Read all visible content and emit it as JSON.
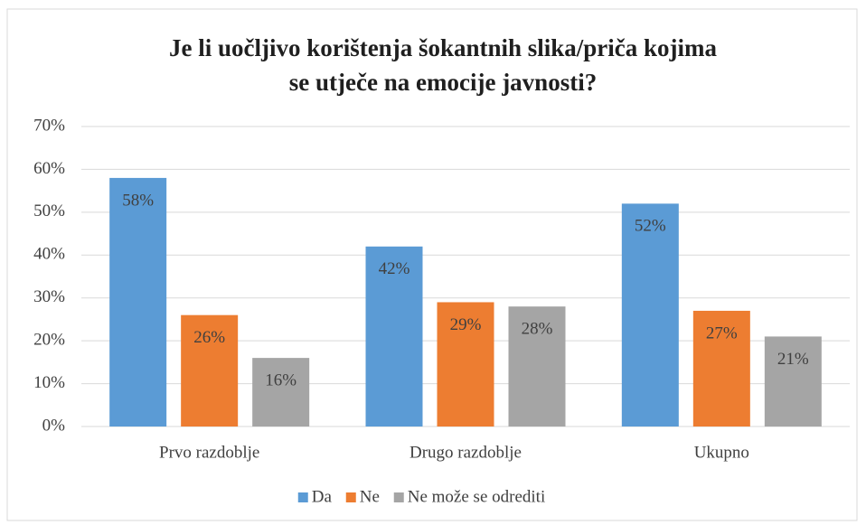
{
  "chart_data": {
    "type": "bar",
    "title": [
      "Je li uočljivo korištenja šokantnih slika/priča kojima",
      "se utječe na emocije javnosti?"
    ],
    "categories": [
      "Prvo razdoblje",
      "Drugo razdoblje",
      "Ukupno"
    ],
    "series": [
      {
        "name": "Da",
        "color": "#5b9bd5",
        "values": [
          58,
          42,
          52
        ],
        "value_labels": [
          "58%",
          "42%",
          "52%"
        ]
      },
      {
        "name": "Ne",
        "color": "#ed7d31",
        "values": [
          26,
          29,
          27
        ],
        "value_labels": [
          "26%",
          "29%",
          "27%"
        ]
      },
      {
        "name": "Ne može se odrediti",
        "color": "#a5a5a5",
        "values": [
          16,
          28,
          21
        ],
        "value_labels": [
          "16%",
          "28%",
          "21%"
        ]
      }
    ],
    "ylim": [
      0,
      70
    ],
    "yticks": [
      {
        "value": 0,
        "label": "0%"
      },
      {
        "value": 10,
        "label": "10%"
      },
      {
        "value": 20,
        "label": "20%"
      },
      {
        "value": 30,
        "label": "30%"
      },
      {
        "value": 40,
        "label": "40%"
      },
      {
        "value": 50,
        "label": "50%"
      },
      {
        "value": 60,
        "label": "60%"
      },
      {
        "value": 70,
        "label": "70%"
      }
    ],
    "grid": true,
    "legend": "bottom"
  }
}
